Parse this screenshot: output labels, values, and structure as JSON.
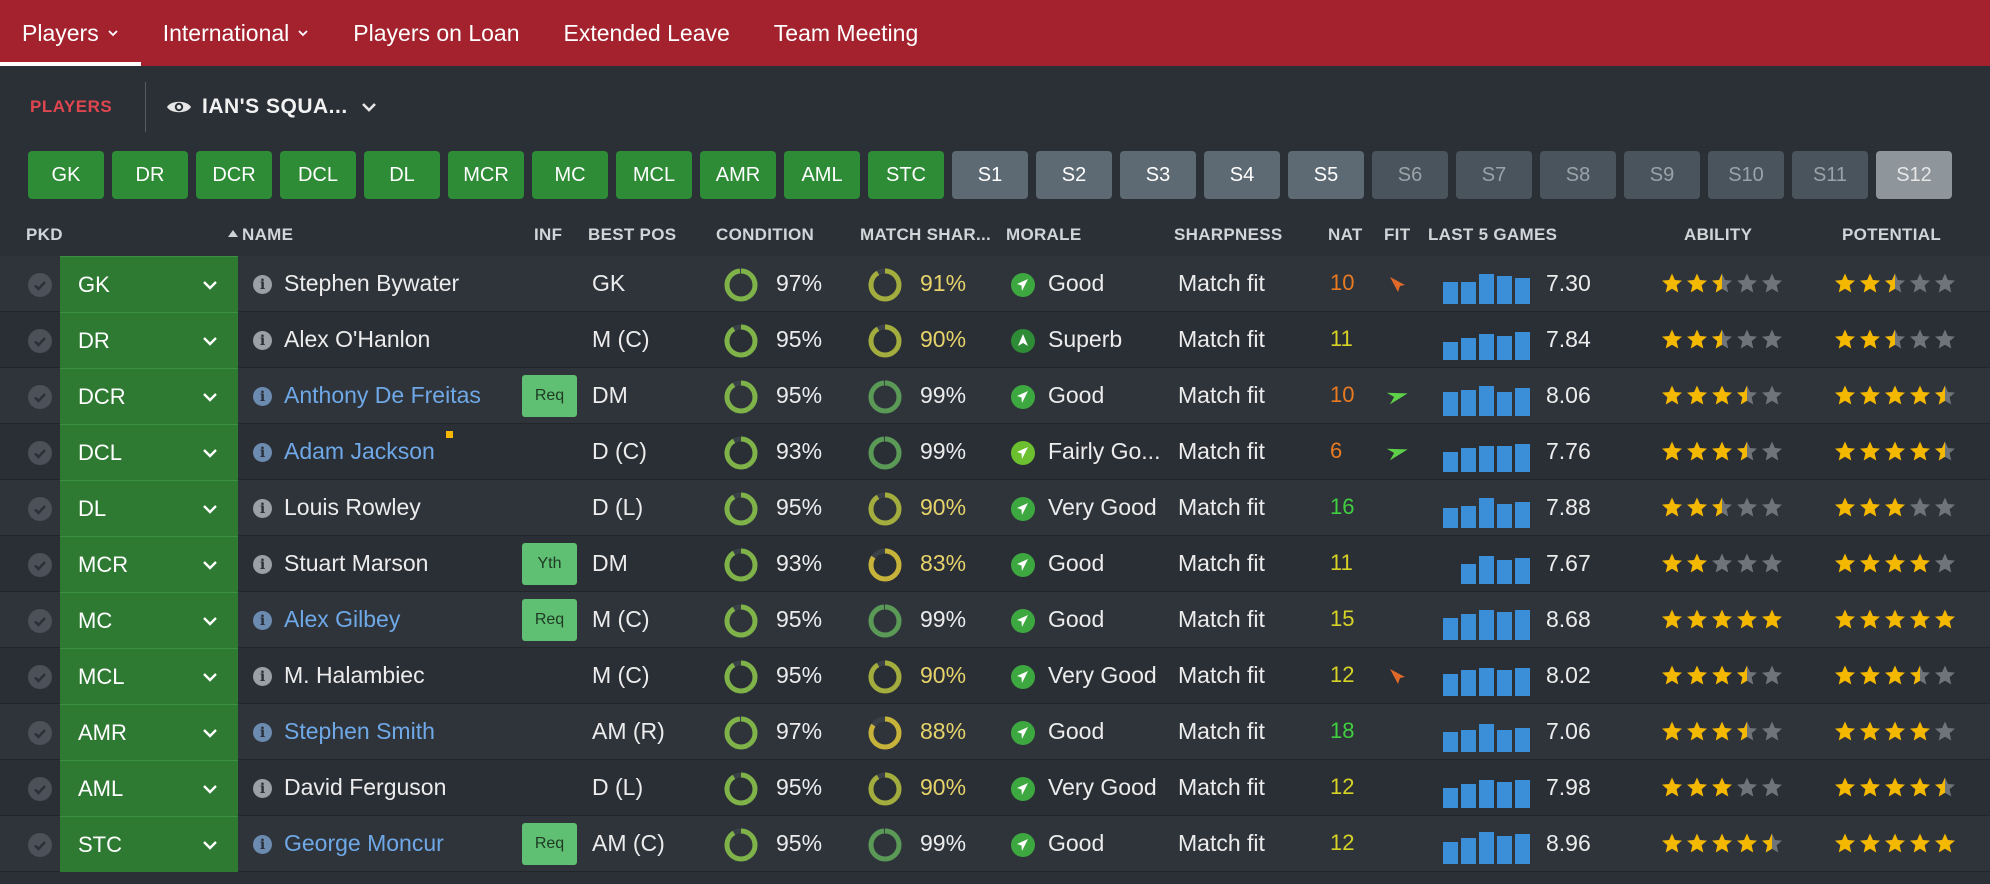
{
  "nav": {
    "tabs": [
      {
        "label": "Players",
        "has_menu": true,
        "active": true
      },
      {
        "label": "International",
        "has_menu": true,
        "active": false
      },
      {
        "label": "Players on Loan",
        "has_menu": false,
        "active": false
      },
      {
        "label": "Extended Leave",
        "has_menu": false,
        "active": false
      },
      {
        "label": "Team Meeting",
        "has_menu": false,
        "active": false
      }
    ]
  },
  "subheader": {
    "section": "PLAYERS",
    "view": "IAN'S SQUA...",
    "view_icon": "eye-icon"
  },
  "positions": [
    {
      "label": "GK",
      "style": "green"
    },
    {
      "label": "DR",
      "style": "green"
    },
    {
      "label": "DCR",
      "style": "green"
    },
    {
      "label": "DCL",
      "style": "green"
    },
    {
      "label": "DL",
      "style": "green"
    },
    {
      "label": "MCR",
      "style": "green"
    },
    {
      "label": "MC",
      "style": "green"
    },
    {
      "label": "MCL",
      "style": "green"
    },
    {
      "label": "AMR",
      "style": "green"
    },
    {
      "label": "AML",
      "style": "green"
    },
    {
      "label": "STC",
      "style": "green"
    },
    {
      "label": "S1",
      "style": "sub"
    },
    {
      "label": "S2",
      "style": "sub"
    },
    {
      "label": "S3",
      "style": "sub"
    },
    {
      "label": "S4",
      "style": "sub"
    },
    {
      "label": "S5",
      "style": "sub"
    },
    {
      "label": "S6",
      "style": "dim"
    },
    {
      "label": "S7",
      "style": "dim"
    },
    {
      "label": "S8",
      "style": "dim"
    },
    {
      "label": "S9",
      "style": "dim"
    },
    {
      "label": "S10",
      "style": "dim"
    },
    {
      "label": "S11",
      "style": "dim"
    },
    {
      "label": "S12",
      "style": "light"
    }
  ],
  "columns": {
    "pkd": "PKD",
    "name": "NAME",
    "inf": "INF",
    "best_pos": "BEST POS",
    "condition": "CONDITION",
    "match_sharpness": "MATCH SHAR...",
    "morale": "MORALE",
    "sharpness": "SHARPNESS",
    "nat": "NAT",
    "fit": "FIT",
    "last5": "LAST 5 GAMES",
    "ability": "ABILITY",
    "potential": "POTENTIAL"
  },
  "colors": {
    "nav_bg": "#a3222e",
    "green": "#2e7a33",
    "link": "#6fa8e6",
    "star": "#f5b800",
    "bar": "#3a8fd8"
  },
  "players": [
    {
      "pos": "GK",
      "name": "Stephen Bywater",
      "link": false,
      "inf": "",
      "dot": false,
      "best_pos": "GK",
      "condition": 97,
      "condition_label": "97%",
      "match_sharpness": 91,
      "ms_label": "91%",
      "morale_icon": "good",
      "morale": "Good",
      "sharpness": "Match fit",
      "nat": "10",
      "nat_color": "#e87a22",
      "fit": "down",
      "last5": [
        0.55,
        0.55,
        0.75,
        0.7,
        0.65
      ],
      "rating": "7.30",
      "ability": 2.5,
      "potential": 2.5
    },
    {
      "pos": "DR",
      "name": "Alex O'Hanlon",
      "link": false,
      "inf": "",
      "dot": false,
      "best_pos": "M (C)",
      "condition": 95,
      "condition_label": "95%",
      "match_sharpness": 90,
      "ms_label": "90%",
      "morale_icon": "superb",
      "morale": "Superb",
      "sharpness": "Match fit",
      "nat": "11",
      "nat_color": "#d7d226",
      "fit": "",
      "last5": [
        0.45,
        0.55,
        0.65,
        0.6,
        0.7
      ],
      "rating": "7.84",
      "ability": 2.5,
      "potential": 2.5
    },
    {
      "pos": "DCR",
      "name": "Anthony De Freitas",
      "link": true,
      "inf": "Req",
      "dot": false,
      "best_pos": "DM",
      "condition": 95,
      "condition_label": "95%",
      "match_sharpness": 99,
      "ms_label": "99%",
      "morale_icon": "good",
      "morale": "Good",
      "sharpness": "Match fit",
      "nat": "10",
      "nat_color": "#e87a22",
      "fit": "up",
      "last5": [
        0.6,
        0.65,
        0.75,
        0.6,
        0.7
      ],
      "rating": "8.06",
      "ability": 3.5,
      "potential": 4.5
    },
    {
      "pos": "DCL",
      "name": "Adam Jackson",
      "link": true,
      "inf": "",
      "dot": true,
      "best_pos": "D (C)",
      "condition": 93,
      "condition_label": "93%",
      "match_sharpness": 99,
      "ms_label": "99%",
      "morale_icon": "fairly",
      "morale": "Fairly Go...",
      "sharpness": "Match fit",
      "nat": "6",
      "nat_color": "#e87a22",
      "fit": "up",
      "last5": [
        0.5,
        0.6,
        0.65,
        0.65,
        0.7
      ],
      "rating": "7.76",
      "ability": 3.5,
      "potential": 4.5
    },
    {
      "pos": "DL",
      "name": "Louis Rowley",
      "link": false,
      "inf": "",
      "dot": false,
      "best_pos": "D (L)",
      "condition": 95,
      "condition_label": "95%",
      "match_sharpness": 90,
      "ms_label": "90%",
      "morale_icon": "verygood",
      "morale": "Very Good",
      "sharpness": "Match fit",
      "nat": "16",
      "nat_color": "#3fcf3f",
      "fit": "",
      "last5": [
        0.5,
        0.55,
        0.75,
        0.6,
        0.65
      ],
      "rating": "7.88",
      "ability": 2.5,
      "potential": 3
    },
    {
      "pos": "MCR",
      "name": "Stuart Marson",
      "link": false,
      "inf": "Yth",
      "dot": false,
      "best_pos": "DM",
      "condition": 93,
      "condition_label": "93%",
      "match_sharpness": 83,
      "ms_label": "83%",
      "morale_icon": "good",
      "morale": "Good",
      "sharpness": "Match fit",
      "nat": "11",
      "nat_color": "#d7d226",
      "fit": "",
      "last5": [
        0,
        0.5,
        0.7,
        0.6,
        0.65
      ],
      "rating": "7.67",
      "ability": 2,
      "potential": 4
    },
    {
      "pos": "MC",
      "name": "Alex Gilbey",
      "link": true,
      "inf": "Req",
      "dot": false,
      "best_pos": "M (C)",
      "condition": 95,
      "condition_label": "95%",
      "match_sharpness": 99,
      "ms_label": "99%",
      "morale_icon": "good",
      "morale": "Good",
      "sharpness": "Match fit",
      "nat": "15",
      "nat_color": "#d7d226",
      "fit": "",
      "last5": [
        0.55,
        0.65,
        0.75,
        0.7,
        0.75
      ],
      "rating": "8.68",
      "ability": 5,
      "potential": 5
    },
    {
      "pos": "MCL",
      "name": "M. Halambiec",
      "link": false,
      "inf": "",
      "dot": false,
      "best_pos": "M (C)",
      "condition": 95,
      "condition_label": "95%",
      "match_sharpness": 90,
      "ms_label": "90%",
      "morale_icon": "verygood",
      "morale": "Very Good",
      "sharpness": "Match fit",
      "nat": "12",
      "nat_color": "#d7d226",
      "fit": "down",
      "last5": [
        0.55,
        0.65,
        0.7,
        0.65,
        0.7
      ],
      "rating": "8.02",
      "ability": 3.5,
      "potential": 3.5
    },
    {
      "pos": "AMR",
      "name": "Stephen Smith",
      "link": true,
      "inf": "",
      "dot": false,
      "best_pos": "AM (R)",
      "condition": 97,
      "condition_label": "97%",
      "match_sharpness": 88,
      "ms_label": "88%",
      "morale_icon": "good",
      "morale": "Good",
      "sharpness": "Match fit",
      "nat": "18",
      "nat_color": "#3fcf3f",
      "fit": "",
      "last5": [
        0.5,
        0.55,
        0.7,
        0.55,
        0.6
      ],
      "rating": "7.06",
      "ability": 3.5,
      "potential": 4
    },
    {
      "pos": "AML",
      "name": "David Ferguson",
      "link": false,
      "inf": "",
      "dot": false,
      "best_pos": "D (L)",
      "condition": 95,
      "condition_label": "95%",
      "match_sharpness": 90,
      "ms_label": "90%",
      "morale_icon": "verygood",
      "morale": "Very Good",
      "sharpness": "Match fit",
      "nat": "12",
      "nat_color": "#d7d226",
      "fit": "",
      "last5": [
        0.5,
        0.6,
        0.7,
        0.65,
        0.7
      ],
      "rating": "7.98",
      "ability": 3,
      "potential": 4.5
    },
    {
      "pos": "STC",
      "name": "George Moncur",
      "link": true,
      "inf": "Req",
      "dot": false,
      "best_pos": "AM (C)",
      "condition": 95,
      "condition_label": "95%",
      "match_sharpness": 99,
      "ms_label": "99%",
      "morale_icon": "good",
      "morale": "Good",
      "sharpness": "Match fit",
      "nat": "12",
      "nat_color": "#d7d226",
      "fit": "",
      "last5": [
        0.55,
        0.65,
        0.8,
        0.7,
        0.75
      ],
      "rating": "8.96",
      "ability": 4.5,
      "potential": 5
    }
  ]
}
